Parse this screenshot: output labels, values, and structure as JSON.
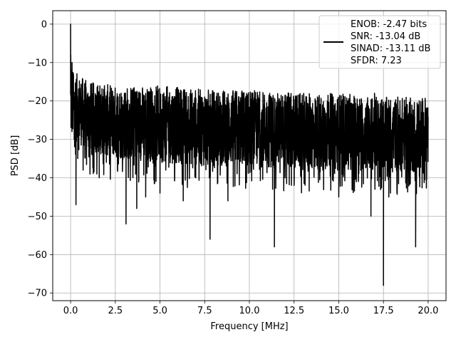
{
  "chart_data": {
    "type": "line",
    "xlabel": "Frequency [MHz]",
    "ylabel": "PSD [dB]",
    "xlim": [
      -1.0,
      21.0
    ],
    "ylim": [
      -72,
      3.5
    ],
    "xticks": [
      0.0,
      2.5,
      5.0,
      7.5,
      10.0,
      12.5,
      15.0,
      17.5,
      20.0
    ],
    "xtick_labels": [
      "0.0",
      "2.5",
      "5.0",
      "7.5",
      "10.0",
      "12.5",
      "15.0",
      "17.5",
      "20.0"
    ],
    "yticks": [
      0,
      -10,
      -20,
      -30,
      -40,
      -50,
      -60,
      -70
    ],
    "ytick_labels": [
      "0",
      "−10",
      "−20",
      "−30",
      "−40",
      "−50",
      "−60",
      "−70"
    ],
    "grid": true,
    "legend_position": "top-right",
    "series": [
      {
        "name": "ENOB: -2.47 bits\nSNR: -13.04 dB\nSINAD: -13.11 dB\nSFDR: 7.23",
        "legend_lines": [
          "ENOB: -2.47 bits",
          "SNR: -13.04 dB",
          "SINAD: -13.11 dB",
          "SFDR: 7.23"
        ],
        "color": "#000000",
        "x_range": [
          0.0,
          20.0
        ],
        "points": [
          [
            0.0,
            0.0
          ],
          [
            0.01,
            -8
          ],
          [
            0.02,
            -12
          ],
          [
            0.04,
            -16
          ],
          [
            0.06,
            -27
          ],
          [
            0.08,
            -10
          ],
          [
            0.1,
            -20
          ],
          [
            0.13,
            -24
          ],
          [
            0.16,
            -13
          ],
          [
            0.2,
            -30
          ],
          [
            0.24,
            -19
          ],
          [
            0.3,
            -47
          ],
          [
            0.33,
            -22
          ],
          [
            0.4,
            -35
          ],
          [
            0.5,
            -18
          ],
          [
            0.7,
            -38
          ],
          [
            0.9,
            -20
          ],
          [
            1.2,
            -34
          ],
          [
            1.6,
            -40
          ],
          [
            1.85,
            -17
          ],
          [
            2.0,
            -36
          ],
          [
            2.3,
            -20
          ],
          [
            3.1,
            -52
          ],
          [
            3.3,
            -22
          ],
          [
            3.4,
            -30
          ],
          [
            3.5,
            -21
          ],
          [
            3.7,
            -48
          ],
          [
            3.9,
            -18
          ],
          [
            4.2,
            -45
          ],
          [
            4.5,
            -20
          ],
          [
            5.0,
            -44
          ],
          [
            5.5,
            -19
          ],
          [
            6.3,
            -46
          ],
          [
            6.8,
            -18
          ],
          [
            7.0,
            -40
          ],
          [
            7.5,
            -21
          ],
          [
            7.8,
            -56
          ],
          [
            8.0,
            -20
          ],
          [
            8.8,
            -46
          ],
          [
            9.2,
            -18
          ],
          [
            9.8,
            -40
          ],
          [
            10.5,
            -21
          ],
          [
            11.4,
            -58
          ],
          [
            11.6,
            -20
          ],
          [
            12.0,
            -40
          ],
          [
            12.2,
            -18
          ],
          [
            12.5,
            -42
          ],
          [
            13.2,
            -19
          ],
          [
            15.0,
            -45
          ],
          [
            15.5,
            -20
          ],
          [
            16.8,
            -50
          ],
          [
            17.0,
            -18
          ],
          [
            17.3,
            -35
          ],
          [
            17.5,
            -68
          ],
          [
            17.55,
            -30
          ],
          [
            17.6,
            -22
          ],
          [
            17.8,
            -45
          ],
          [
            18.3,
            -19
          ],
          [
            19.3,
            -58
          ],
          [
            19.5,
            -20
          ],
          [
            19.8,
            -38
          ],
          [
            20.0,
            -25
          ]
        ],
        "envelope": {
          "upper": [
            [
              0.1,
              -12
            ],
            [
              1.0,
              -15
            ],
            [
              2.5,
              -16
            ],
            [
              5.0,
              -16
            ],
            [
              7.5,
              -17
            ],
            [
              10.0,
              -17
            ],
            [
              12.5,
              -18
            ],
            [
              15.0,
              -18
            ],
            [
              17.5,
              -19
            ],
            [
              20.0,
              -19
            ]
          ],
          "lower": [
            [
              0.1,
              -30
            ],
            [
              1.0,
              -33
            ],
            [
              2.5,
              -35
            ],
            [
              5.0,
              -36
            ],
            [
              7.5,
              -37
            ],
            [
              10.0,
              -37
            ],
            [
              12.5,
              -38
            ],
            [
              15.0,
              -38
            ],
            [
              17.5,
              -38
            ],
            [
              20.0,
              -39
            ]
          ],
          "mean": [
            [
              0.1,
              -23
            ],
            [
              20.0,
              -28
            ]
          ]
        }
      }
    ]
  }
}
